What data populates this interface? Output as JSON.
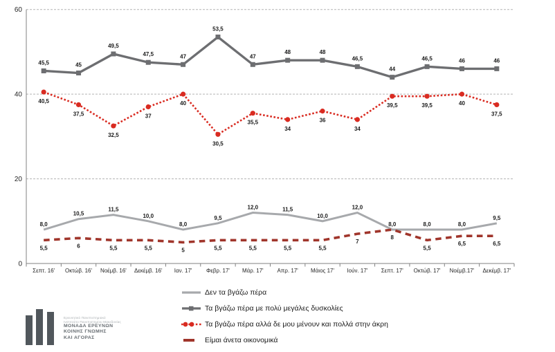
{
  "chart_data": {
    "type": "line",
    "title": "",
    "xlabel": "",
    "ylabel": "",
    "ylim": [
      0,
      60
    ],
    "y_ticks": [
      0,
      20,
      40,
      60
    ],
    "grid": "horizontal dashed",
    "legend_position": "bottom",
    "categories": [
      "Σεπτ. 16'",
      "Οκτώβ. 16'",
      "Νοέμβ. 16'",
      "Δεκέμβ. 16'",
      "Ιαν. 17'",
      "Φεβρ. 17'",
      "Μάρ. 17'",
      "Απρ. 17'",
      "Μάιος 17'",
      "Ιούν. 17'",
      "Σεπτ. 17'",
      "Οκτώβ. 17'",
      "Νοέμβ.17'",
      "Δεκέμβ. 17'"
    ],
    "series": [
      {
        "name": "Δεν τα βγάζω πέρα",
        "color": "#a7a9ac",
        "style": "solid",
        "marker": "none",
        "label_position": "above",
        "values": [
          8.0,
          10.5,
          11.5,
          10.0,
          8.0,
          9.5,
          12.0,
          11.5,
          10.0,
          12.0,
          8.0,
          8.0,
          8.0,
          9.5
        ],
        "labels": [
          "8,0",
          "10,5",
          "11,5",
          "10,0",
          "8,0",
          "9,5",
          "12,0",
          "11,5",
          "10,0",
          "12,0",
          "8,0",
          "8,0",
          "8,0",
          "9,5"
        ]
      },
      {
        "name": "Τα βγάζω πέρα με πολύ μεγάλες δυσκολίες",
        "color": "#6d6e71",
        "style": "solid",
        "marker": "square",
        "label_position": "above",
        "values": [
          45.5,
          45,
          49.5,
          47.5,
          47,
          53.5,
          47,
          48,
          48,
          46.5,
          44,
          46.5,
          46,
          46
        ],
        "labels": [
          "45,5",
          "45",
          "49,5",
          "47,5",
          "47",
          "53,5",
          "47",
          "48",
          "48",
          "46,5",
          "44",
          "46,5",
          "46",
          "46"
        ]
      },
      {
        "name": "Τα βγάζω πέρα αλλά δε μου μένουν και πολλά στην άκρη",
        "color": "#d92b21",
        "style": "dotted",
        "marker": "circle",
        "label_position": "below",
        "values": [
          40.5,
          37.5,
          32.5,
          37,
          40,
          30.5,
          35.5,
          34,
          36,
          34,
          39.5,
          39.5,
          40,
          37.5
        ],
        "labels": [
          "40,5",
          "37,5",
          "32,5",
          "37",
          "40",
          "30,5",
          "35,5",
          "34",
          "36",
          "34",
          "39,5",
          "39,5",
          "40",
          "37,5"
        ]
      },
      {
        "name": "Είμαι άνετα οικονομικά",
        "color": "#a0352b",
        "style": "dashed",
        "marker": "none",
        "label_position": "below",
        "values": [
          5.5,
          6,
          5.5,
          5.5,
          5,
          5.5,
          5.5,
          5.5,
          5.5,
          7,
          8,
          5.5,
          6.5,
          6.5
        ],
        "labels": [
          "5,5",
          "6",
          "5,5",
          "5,5",
          "5",
          "5,5",
          "5,5",
          "5,5",
          "5,5",
          "7",
          "8",
          "5,5",
          "6,5",
          "6,5"
        ]
      }
    ]
  },
  "axis": {
    "y_tick_labels": [
      "0",
      "20",
      "40",
      "60"
    ]
  },
  "colors": {
    "gridline": "#b3b3b3",
    "axis": "#808080",
    "data_label": "#1a1a1a",
    "tick_label": "#262626"
  },
  "logo": {
    "institute_line1": "Ερευνητικό Πανεπιστημιακό",
    "institute_line2": "Ινστιτούτο Πανεπιστημίου Μακεδονίας",
    "unit_line1": "ΜΟΝΑΔΑ ΕΡΕΥΝΩΝ",
    "unit_line2": "ΚΟΙΝΗΣ ΓΝΩΜΗΣ",
    "unit_line3": "ΚΑΙ ΑΓΟΡΑΣ"
  }
}
